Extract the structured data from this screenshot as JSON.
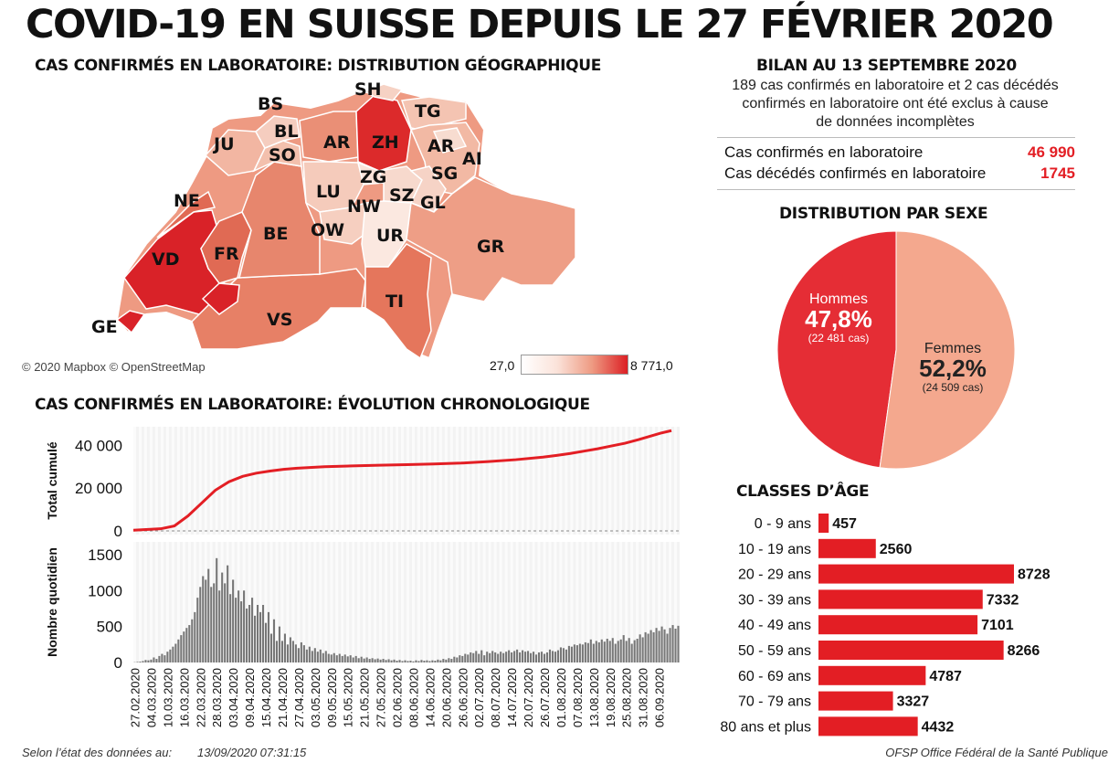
{
  "header": {
    "title": "COVID-19 EN SUISSE DEPUIS LE 27 FÉVRIER 2020"
  },
  "map": {
    "heading": "CAS CONFIRMÉS EN LABORATOIRE: DISTRIBUTION GÉOGRAPHIQUE",
    "copyright": "© 2020 Mapbox © OpenStreetMap",
    "legend_min": "27,0",
    "legend_max": "8 771,0",
    "colors": {
      "low": "#fbe3da",
      "high": "#dc1f24"
    },
    "cantons": [
      "BS",
      "SH",
      "TG",
      "BL",
      "JU",
      "AR",
      "ZH",
      "AR",
      "SO",
      "AI",
      "SG",
      "ZG",
      "LU",
      "SZ",
      "NE",
      "NW",
      "GL",
      "BE",
      "OW",
      "UR",
      "GR",
      "VD",
      "FR",
      "TI",
      "VS",
      "GE"
    ]
  },
  "summary": {
    "heading": "BILAN AU 13 SEPTEMBRE 2020",
    "note_lines": [
      "189 cas confirmés en laboratoire et 2 cas décédés",
      "confirmés en laboratoire ont été exclus à cause",
      "de données incomplètes"
    ],
    "confirmed_label": "Cas confirmés en laboratoire",
    "confirmed_value": "46 990",
    "deaths_label": "Cas décédés confirmés en laboratoire",
    "deaths_value": "1745"
  },
  "colors": {
    "accent": "#e31e24",
    "bar_gray": "#777777",
    "men": "#e52d35",
    "women": "#f4a88e"
  },
  "chart_data": [
    {
      "type": "pie",
      "title": "DISTRIBUTION PAR SEXE",
      "slices": [
        {
          "name": "Hommes",
          "pct": 47.8,
          "pct_label": "47,8%",
          "cases_label": "(22 481 cas)",
          "cases": 22481
        },
        {
          "name": "Femmes",
          "pct": 52.2,
          "pct_label": "52,2%",
          "cases_label": "(24 509 cas)",
          "cases": 24509
        }
      ]
    },
    {
      "type": "bar",
      "orientation": "horizontal",
      "title": "CLASSES D’ÂGE",
      "categories": [
        "0 - 9 ans",
        "10 - 19 ans",
        "20 - 29 ans",
        "30 - 39 ans",
        "40 - 49 ans",
        "50 - 59 ans",
        "60 - 69 ans",
        "70 - 79 ans",
        "80 ans et plus"
      ],
      "values": [
        457,
        2560,
        8728,
        7332,
        7101,
        8266,
        4787,
        3327,
        4432
      ],
      "xlim": [
        0,
        8728
      ]
    },
    {
      "type": "line",
      "title": "CAS CONFIRMÉS EN LABORATOIRE: ÉVOLUTION CHRONOLOGIQUE",
      "ylabel": "Total cumulé",
      "yticks": [
        "0",
        "20 000",
        "40 000"
      ],
      "ylim": [
        0,
        47000
      ],
      "x_days": [
        0,
        10,
        15,
        20,
        25,
        30,
        35,
        40,
        45,
        50,
        55,
        60,
        70,
        80,
        90,
        100,
        110,
        120,
        130,
        140,
        150,
        155,
        160,
        165,
        170,
        175,
        180,
        185,
        189,
        193,
        197
      ],
      "values": [
        300,
        1000,
        2300,
        7000,
        13000,
        19000,
        23000,
        25500,
        27000,
        28000,
        28800,
        29300,
        30000,
        30400,
        30700,
        31000,
        31300,
        31700,
        32400,
        33300,
        34500,
        35300,
        36200,
        37300,
        38400,
        39700,
        41000,
        42700,
        44200,
        45700,
        46900
      ]
    },
    {
      "type": "bar",
      "title": "Nombre quotidien",
      "ylabel": "Nombre quotidien",
      "yticks": [
        "0",
        "500",
        "1000",
        "1500"
      ],
      "ylim": [
        0,
        1600
      ],
      "start_date": "27.02.2020",
      "values": [
        4,
        8,
        12,
        20,
        35,
        30,
        40,
        70,
        50,
        90,
        120,
        100,
        150,
        180,
        220,
        260,
        320,
        380,
        430,
        480,
        520,
        600,
        700,
        900,
        1050,
        1200,
        1150,
        1300,
        1050,
        1100,
        1450,
        1000,
        1250,
        1100,
        1350,
        950,
        1150,
        900,
        1000,
        850,
        1000,
        750,
        800,
        900,
        650,
        800,
        700,
        800,
        550,
        700,
        400,
        600,
        300,
        500,
        300,
        400,
        250,
        350,
        300,
        250,
        200,
        280,
        240,
        180,
        220,
        160,
        200,
        150,
        180,
        130,
        160,
        120,
        110,
        130,
        100,
        120,
        90,
        110,
        85,
        100,
        70,
        90,
        60,
        80,
        55,
        70,
        50,
        60,
        45,
        55,
        40,
        50,
        35,
        45,
        30,
        40,
        25,
        35,
        20,
        30,
        20,
        25,
        15,
        30,
        20,
        35,
        25,
        30,
        20,
        30,
        25,
        40,
        30,
        50,
        40,
        60,
        50,
        80,
        70,
        100,
        90,
        120,
        110,
        140,
        130,
        160,
        120,
        170,
        100,
        150,
        130,
        160,
        140,
        120,
        150,
        130,
        150,
        170,
        140,
        160,
        180,
        140,
        170,
        150,
        160,
        130,
        150,
        110,
        140,
        150,
        120,
        140,
        180,
        160,
        150,
        170,
        210,
        200,
        180,
        230,
        220,
        250,
        240,
        260,
        250,
        280,
        270,
        320,
        260,
        300,
        280,
        320,
        290,
        330,
        300,
        340,
        260,
        300,
        320,
        380,
        300,
        340,
        260,
        310,
        330,
        390,
        350,
        420,
        400,
        450,
        420,
        480,
        440,
        500,
        460,
        400,
        480,
        520,
        470,
        510
      ]
    }
  ],
  "dates": [
    "27.02.2020",
    "04.03.2020",
    "10.03.2020",
    "16.03.2020",
    "22.03.2020",
    "28.03.2020",
    "03.04.2020",
    "09.04.2020",
    "15.04.2020",
    "21.04.2020",
    "27.04.2020",
    "03.05.2020",
    "09.05.2020",
    "15.05.2020",
    "21.05.2020",
    "27.05.2020",
    "02.06.2020",
    "08.06.2020",
    "14.06.2020",
    "20.06.2020",
    "26.06.2020",
    "02.07.2020",
    "08.07.2020",
    "14.07.2020",
    "20.07.2020",
    "26.07.2020",
    "01.08.2020",
    "07.08.2020",
    "13.08.2020",
    "19.08.2020",
    "25.08.2020",
    "31.08.2020",
    "06.09.2020"
  ],
  "footer": {
    "left_label": "Selon l’état des données au:",
    "timestamp": "13/09/2020 07:31:15",
    "source": "OFSP Office Fédéral de la Santé Publique"
  }
}
